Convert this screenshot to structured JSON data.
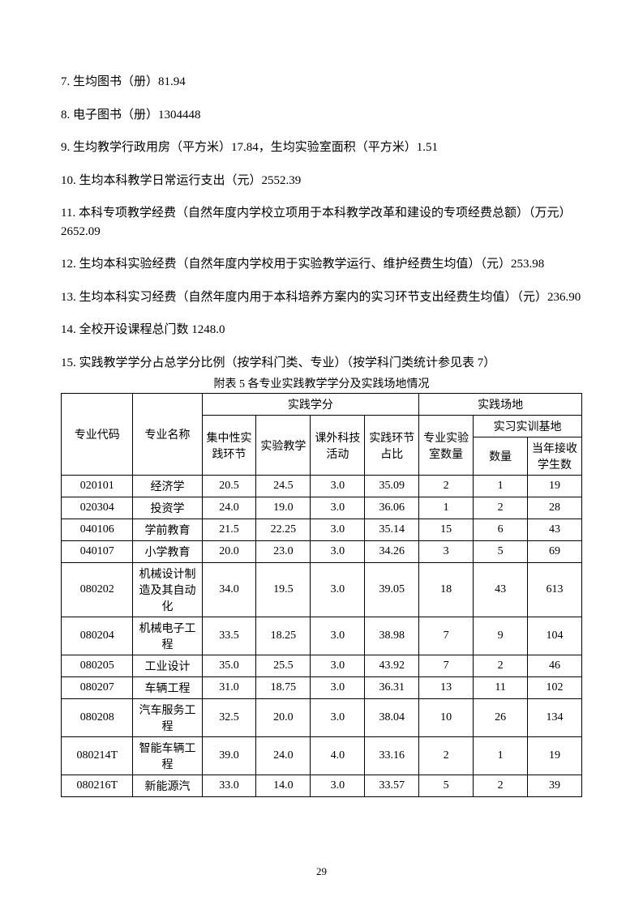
{
  "items": [
    "7. 生均图书（册）81.94",
    "8. 电子图书（册）1304448",
    "9. 生均教学行政用房（平方米）17.84，生均实验室面积（平方米）1.51",
    "10. 生均本科教学日常运行支出（元）2552.39",
    "11. 本科专项教学经费（自然年度内学校立项用于本科教学改革和建设的专项经费总额）（万元）2652.09",
    "12. 生均本科实验经费（自然年度内学校用于实验教学运行、维护经费生均值）（元）253.98",
    "13. 生均本科实习经费（自然年度内用于本科培养方案内的实习环节支出经费生均值）（元）236.90",
    "14. 全校开设课程总门数 1248.0",
    "15. 实践教学学分占总学分比例（按学科门类、专业）（按学科门类统计参见表 7）"
  ],
  "table_caption": "附表 5 各专业实践教学学分及实践场地情况",
  "headers": {
    "code": "专业代码",
    "name": "专业名称",
    "credit_group": "实践学分",
    "venue_group": "实践场地",
    "col1": "集中性实践环节",
    "col2": "实验教学",
    "col3": "课外科技活动",
    "col4": "实践环节占比",
    "col5": "专业实验室数量",
    "col6_group": "实习实训基地",
    "col6": "数量",
    "col7": "当年接收学生数"
  },
  "rows": [
    [
      "020101",
      "经济学",
      "20.5",
      "24.5",
      "3.0",
      "35.09",
      "2",
      "1",
      "19"
    ],
    [
      "020304",
      "投资学",
      "24.0",
      "19.0",
      "3.0",
      "36.06",
      "1",
      "2",
      "28"
    ],
    [
      "040106",
      "学前教育",
      "21.5",
      "22.25",
      "3.0",
      "35.14",
      "15",
      "6",
      "43"
    ],
    [
      "040107",
      "小学教育",
      "20.0",
      "23.0",
      "3.0",
      "34.26",
      "3",
      "5",
      "69"
    ],
    [
      "080202",
      "机械设计制造及其自动化",
      "34.0",
      "19.5",
      "3.0",
      "39.05",
      "18",
      "43",
      "613"
    ],
    [
      "080204",
      "机械电子工程",
      "33.5",
      "18.25",
      "3.0",
      "38.98",
      "7",
      "9",
      "104"
    ],
    [
      "080205",
      "工业设计",
      "35.0",
      "25.5",
      "3.0",
      "43.92",
      "7",
      "2",
      "46"
    ],
    [
      "080207",
      "车辆工程",
      "31.0",
      "18.75",
      "3.0",
      "36.31",
      "13",
      "11",
      "102"
    ],
    [
      "080208",
      "汽车服务工程",
      "32.5",
      "20.0",
      "3.0",
      "38.04",
      "10",
      "26",
      "134"
    ],
    [
      "080214T",
      "智能车辆工程",
      "39.0",
      "24.0",
      "4.0",
      "33.16",
      "2",
      "1",
      "19"
    ],
    [
      "080216T",
      "新能源汽",
      "33.0",
      "14.0",
      "3.0",
      "33.57",
      "5",
      "2",
      "39"
    ]
  ],
  "page_number": "29"
}
